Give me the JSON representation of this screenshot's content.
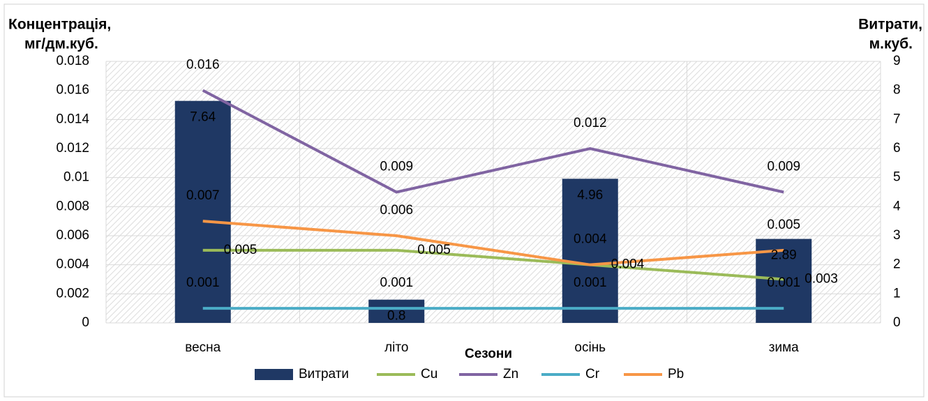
{
  "chart_data": {
    "type": "bar_line",
    "y_label": [
      "Концентрація,",
      "мг/дм.куб."
    ],
    "y2_label": [
      "Витрати,",
      "м.куб."
    ],
    "x_label": "Сезони",
    "categories": [
      "весна",
      "літо",
      "осінь",
      "зима"
    ],
    "series": [
      {
        "name": "Витрати",
        "type": "bar",
        "axis": "y2",
        "color": "#1f3864",
        "values": [
          7.64,
          0.8,
          4.96,
          2.89
        ]
      },
      {
        "name": "Cu",
        "type": "line",
        "color": "#9bbb59",
        "values": [
          0.005,
          0.005,
          0.004,
          0.003
        ]
      },
      {
        "name": "Zn",
        "type": "line",
        "color": "#8064a2",
        "values": [
          0.016,
          0.009,
          0.012,
          0.009
        ]
      },
      {
        "name": "Cr",
        "type": "line",
        "color": "#4bacc6",
        "values": [
          0.001,
          0.001,
          0.001,
          0.001
        ]
      },
      {
        "name": "Pb",
        "type": "line",
        "color": "#f79646",
        "values": [
          0.007,
          0.006,
          0.004,
          0.005
        ]
      }
    ],
    "ylim": [
      0,
      0.018
    ],
    "yticks": [
      0,
      0.002,
      0.004,
      0.006,
      0.008,
      0.01,
      0.012,
      0.014,
      0.016,
      0.018
    ],
    "y2lim": [
      0,
      9
    ],
    "y2ticks": [
      0,
      1,
      2,
      3,
      4,
      5,
      6,
      7,
      8,
      9
    ],
    "grid": true,
    "legend": "bottom"
  }
}
